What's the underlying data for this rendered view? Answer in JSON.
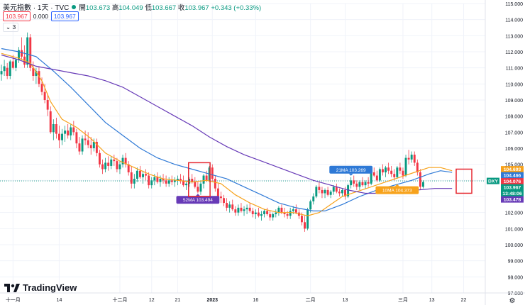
{
  "header": {
    "title": "美元指數 · 1天 · TVC",
    "open_label": "開",
    "open": "103.673",
    "high_label": "高",
    "high": "104.049",
    "low_label": "低",
    "low": "103.667",
    "close_label": "收",
    "close": "103.967",
    "change": "+0.343 (+0.33%)",
    "sell": "103.967",
    "spread": "0.000",
    "buy": "103.967",
    "indicators_count": "3"
  },
  "brand": "TradingView",
  "colors": {
    "up": "#089981",
    "down": "#f23645",
    "ma10": "#f7a21b",
    "ma21": "#2e79d6",
    "ma52": "#673ab7",
    "highlight": "#e5262f",
    "grid": "#f0f3fa",
    "axis_text": "#131722"
  },
  "chart_data": {
    "type": "candlestick",
    "symbol": "DXY",
    "ylim": [
      97,
      115
    ],
    "y_ticks": [
      "97.000",
      "98.000",
      "99.000",
      "100.000",
      "101.000",
      "102.000",
      "103.000",
      "104.000",
      "105.000",
      "106.000",
      "107.000",
      "108.000",
      "109.000",
      "110.000",
      "111.000",
      "112.000",
      "113.000",
      "114.000",
      "115.000"
    ],
    "x_ticks": [
      "十一月",
      "14",
      "十二月",
      "12",
      "21",
      "2023",
      "16",
      "二月",
      "13",
      "三月",
      "13",
      "22"
    ],
    "x_tick_index": [
      4,
      20,
      41,
      52,
      61,
      73,
      88,
      107,
      119,
      139,
      149,
      160
    ],
    "n_slots": 168,
    "candles": [
      [
        110.6,
        111.2,
        110.2,
        110.8
      ],
      [
        110.8,
        111.5,
        110.5,
        111.1
      ],
      [
        111.0,
        111.3,
        110.3,
        110.5
      ],
      [
        110.5,
        111.5,
        110.3,
        111.4
      ],
      [
        111.4,
        111.8,
        110.9,
        111.0
      ],
      [
        111.0,
        111.6,
        110.8,
        111.5
      ],
      [
        111.5,
        112.3,
        111.3,
        112.1
      ],
      [
        112.1,
        112.9,
        111.5,
        111.7
      ],
      [
        111.7,
        112.4,
        111.0,
        111.2
      ],
      [
        111.2,
        113.2,
        111.0,
        112.9
      ],
      [
        112.9,
        113.1,
        110.8,
        111.0
      ],
      [
        111.0,
        111.4,
        110.2,
        110.5
      ],
      [
        110.5,
        111.0,
        110.0,
        110.8
      ],
      [
        110.8,
        111.1,
        109.8,
        110.0
      ],
      [
        110.0,
        110.4,
        109.3,
        109.5
      ],
      [
        109.5,
        110.0,
        108.8,
        109.0
      ],
      [
        109.0,
        109.4,
        108.0,
        108.4
      ],
      [
        108.3,
        108.6,
        106.9,
        107.0
      ],
      [
        107.0,
        107.8,
        106.5,
        107.5
      ],
      [
        107.5,
        107.9,
        106.6,
        106.9
      ],
      [
        106.9,
        107.4,
        106.0,
        106.5
      ],
      [
        106.5,
        107.2,
        106.2,
        106.9
      ],
      [
        106.9,
        107.4,
        106.4,
        107.1
      ],
      [
        107.1,
        107.5,
        106.6,
        106.8
      ],
      [
        106.8,
        107.5,
        106.5,
        107.3
      ],
      [
        107.3,
        107.7,
        106.8,
        107.0
      ],
      [
        107.0,
        107.2,
        106.0,
        106.3
      ],
      [
        106.3,
        106.7,
        105.6,
        105.8
      ],
      [
        105.8,
        106.8,
        105.6,
        106.6
      ],
      [
        106.6,
        107.1,
        106.2,
        106.5
      ],
      [
        106.5,
        107.0,
        106.0,
        106.2
      ],
      [
        106.2,
        106.7,
        105.6,
        106.0
      ],
      [
        106.0,
        106.6,
        105.8,
        106.4
      ],
      [
        106.4,
        106.6,
        105.5,
        105.7
      ],
      [
        105.7,
        105.9,
        104.8,
        105.0
      ],
      [
        105.0,
        105.3,
        104.4,
        104.7
      ],
      [
        104.7,
        105.4,
        104.5,
        105.1
      ],
      [
        105.1,
        105.5,
        104.6,
        104.9
      ],
      [
        104.9,
        105.5,
        104.7,
        105.3
      ],
      [
        105.3,
        105.6,
        104.9,
        105.2
      ],
      [
        105.2,
        105.4,
        104.5,
        104.7
      ],
      [
        104.7,
        105.2,
        104.4,
        105.0
      ],
      [
        105.0,
        105.6,
        104.8,
        105.4
      ],
      [
        105.4,
        105.7,
        104.8,
        105.0
      ],
      [
        105.0,
        105.2,
        104.3,
        104.5
      ],
      [
        104.5,
        104.9,
        103.5,
        103.8
      ],
      [
        103.8,
        104.4,
        103.5,
        104.1
      ],
      [
        104.1,
        104.8,
        103.9,
        104.6
      ],
      [
        104.6,
        104.9,
        104.1,
        104.2
      ],
      [
        104.2,
        104.6,
        103.8,
        104.4
      ],
      [
        104.4,
        104.7,
        104.0,
        104.3
      ],
      [
        104.3,
        104.5,
        103.5,
        103.7
      ],
      [
        103.7,
        104.2,
        103.5,
        104.0
      ],
      [
        104.0,
        104.4,
        103.7,
        104.2
      ],
      [
        104.2,
        104.5,
        103.8,
        103.9
      ],
      [
        103.9,
        104.3,
        103.6,
        104.1
      ],
      [
        104.1,
        104.4,
        103.8,
        104.0
      ],
      [
        104.0,
        104.3,
        103.6,
        103.8
      ],
      [
        103.8,
        104.2,
        103.6,
        104.0
      ],
      [
        104.0,
        104.3,
        103.7,
        103.9
      ],
      [
        103.9,
        104.2,
        103.6,
        104.0
      ],
      [
        104.0,
        104.3,
        103.7,
        104.1
      ],
      [
        104.1,
        104.4,
        103.8,
        104.0
      ],
      [
        104.0,
        104.3,
        103.6,
        103.7
      ],
      [
        103.7,
        104.0,
        103.4,
        103.8
      ],
      [
        103.8,
        104.2,
        103.6,
        104.1
      ],
      [
        104.1,
        104.4,
        103.8,
        103.9
      ],
      [
        103.9,
        104.2,
        103.5,
        103.6
      ],
      [
        103.6,
        103.9,
        103.2,
        103.3
      ],
      [
        103.3,
        104.0,
        103.1,
        103.8
      ],
      [
        103.8,
        104.4,
        103.5,
        104.3
      ],
      [
        104.3,
        104.6,
        103.9,
        104.0
      ],
      [
        104.0,
        104.9,
        103.9,
        104.8
      ],
      [
        104.8,
        105.0,
        103.9,
        104.1
      ],
      [
        104.1,
        104.3,
        103.3,
        103.5
      ],
      [
        103.5,
        103.8,
        102.8,
        103.0
      ],
      [
        103.0,
        103.3,
        102.6,
        102.9
      ],
      [
        102.9,
        103.1,
        102.4,
        102.6
      ],
      [
        102.6,
        102.9,
        102.1,
        102.3
      ],
      [
        102.3,
        102.7,
        102.0,
        102.5
      ],
      [
        102.5,
        102.8,
        102.1,
        102.2
      ],
      [
        102.2,
        102.4,
        101.8,
        102.0
      ],
      [
        102.0,
        102.5,
        101.8,
        102.3
      ],
      [
        102.3,
        102.6,
        102.0,
        102.1
      ],
      [
        102.1,
        102.4,
        101.8,
        102.2
      ],
      [
        102.2,
        102.5,
        101.9,
        102.3
      ],
      [
        102.3,
        102.6,
        102.0,
        102.1
      ],
      [
        102.1,
        102.3,
        101.7,
        101.9
      ],
      [
        101.9,
        102.2,
        101.6,
        102.0
      ],
      [
        102.0,
        102.3,
        101.7,
        101.8
      ],
      [
        101.8,
        102.1,
        101.5,
        101.9
      ],
      [
        101.9,
        102.2,
        101.7,
        102.1
      ],
      [
        102.1,
        102.3,
        101.8,
        101.9
      ],
      [
        101.9,
        102.1,
        101.5,
        101.7
      ],
      [
        101.7,
        102.0,
        101.5,
        101.9
      ],
      [
        101.9,
        102.2,
        101.7,
        102.0
      ],
      [
        102.0,
        102.4,
        101.8,
        102.3
      ],
      [
        102.3,
        102.5,
        101.9,
        102.0
      ],
      [
        102.0,
        102.3,
        101.7,
        101.9
      ],
      [
        101.9,
        102.1,
        101.6,
        101.8
      ],
      [
        101.8,
        102.3,
        101.6,
        102.1
      ],
      [
        102.1,
        102.4,
        101.9,
        102.2
      ],
      [
        102.2,
        102.5,
        101.9,
        102.0
      ],
      [
        102.0,
        102.2,
        101.6,
        101.8
      ],
      [
        101.8,
        102.0,
        101.2,
        101.4
      ],
      [
        101.4,
        101.8,
        100.8,
        101.0
      ],
      [
        101.0,
        102.3,
        100.9,
        102.2
      ],
      [
        102.2,
        102.8,
        102.0,
        102.7
      ],
      [
        102.7,
        103.2,
        102.5,
        103.0
      ],
      [
        103.0,
        103.7,
        102.9,
        103.6
      ],
      [
        103.6,
        103.9,
        103.2,
        103.4
      ],
      [
        103.4,
        103.6,
        102.9,
        103.2
      ],
      [
        103.2,
        103.5,
        102.9,
        103.4
      ],
      [
        103.4,
        103.6,
        103.0,
        103.1
      ],
      [
        103.1,
        103.4,
        102.9,
        103.3
      ],
      [
        103.3,
        103.7,
        103.1,
        103.6
      ],
      [
        103.6,
        103.8,
        103.2,
        103.3
      ],
      [
        103.3,
        103.5,
        103.0,
        103.2
      ],
      [
        103.2,
        103.5,
        103.0,
        103.4
      ],
      [
        103.4,
        103.6,
        102.8,
        103.0
      ],
      [
        103.0,
        103.8,
        102.9,
        103.7
      ],
      [
        103.7,
        104.2,
        103.5,
        104.0
      ],
      [
        104.0,
        104.3,
        103.6,
        103.8
      ],
      [
        103.8,
        104.0,
        103.4,
        103.6
      ],
      [
        103.6,
        104.0,
        103.4,
        103.9
      ],
      [
        103.9,
        104.2,
        103.6,
        103.7
      ],
      [
        103.7,
        104.0,
        103.5,
        103.9
      ],
      [
        103.9,
        104.2,
        103.6,
        103.8
      ],
      [
        103.8,
        104.6,
        103.7,
        104.5
      ],
      [
        104.5,
        104.8,
        104.2,
        104.3
      ],
      [
        104.3,
        104.6,
        103.9,
        104.0
      ],
      [
        104.0,
        104.8,
        103.9,
        104.7
      ],
      [
        104.7,
        105.0,
        104.3,
        104.5
      ],
      [
        104.5,
        104.9,
        104.2,
        104.8
      ],
      [
        104.8,
        105.1,
        104.4,
        104.6
      ],
      [
        104.6,
        104.9,
        104.2,
        104.4
      ],
      [
        104.4,
        104.7,
        104.0,
        104.2
      ],
      [
        104.2,
        104.9,
        104.1,
        104.8
      ],
      [
        104.8,
        105.1,
        104.4,
        104.6
      ],
      [
        104.6,
        104.8,
        104.1,
        104.3
      ],
      [
        104.3,
        105.6,
        104.2,
        105.4
      ],
      [
        105.4,
        105.9,
        105.0,
        105.3
      ],
      [
        105.3,
        105.8,
        105.1,
        105.6
      ],
      [
        105.6,
        105.8,
        104.9,
        105.1
      ],
      [
        105.1,
        105.3,
        104.3,
        104.5
      ],
      [
        104.5,
        104.7,
        103.4,
        103.6
      ],
      [
        103.6,
        104.0,
        103.5,
        103.9
      ]
    ],
    "series": [
      {
        "name": "10MA",
        "label": "10MA 104.373",
        "values": [
          [
            0,
            111.9
          ],
          [
            6,
            111.6
          ],
          [
            10,
            111.3
          ],
          [
            14,
            110.2
          ],
          [
            17,
            108.9
          ],
          [
            21,
            107.8
          ],
          [
            26,
            107.3
          ],
          [
            31,
            106.6
          ],
          [
            36,
            105.7
          ],
          [
            41,
            105.2
          ],
          [
            46,
            104.8
          ],
          [
            51,
            104.4
          ],
          [
            56,
            104.1
          ],
          [
            61,
            104.0
          ],
          [
            66,
            103.9
          ],
          [
            71,
            104.0
          ],
          [
            76,
            103.8
          ],
          [
            81,
            103.1
          ],
          [
            86,
            102.6
          ],
          [
            91,
            102.2
          ],
          [
            96,
            102.0
          ],
          [
            101,
            102.0
          ],
          [
            106,
            101.8
          ],
          [
            110,
            102.0
          ],
          [
            114,
            102.5
          ],
          [
            118,
            103.0
          ],
          [
            123,
            103.3
          ],
          [
            128,
            103.6
          ],
          [
            133,
            103.9
          ],
          [
            138,
            104.2
          ],
          [
            143,
            104.5
          ],
          [
            148,
            104.8
          ],
          [
            152,
            104.8
          ],
          [
            156,
            104.6
          ]
        ]
      },
      {
        "name": "21MA",
        "label": "21MA 103.269",
        "values": [
          [
            0,
            112.2
          ],
          [
            6,
            112.0
          ],
          [
            12,
            111.7
          ],
          [
            18,
            110.8
          ],
          [
            24,
            109.8
          ],
          [
            30,
            108.7
          ],
          [
            36,
            107.6
          ],
          [
            42,
            106.8
          ],
          [
            48,
            106.0
          ],
          [
            54,
            105.4
          ],
          [
            60,
            105.0
          ],
          [
            66,
            104.7
          ],
          [
            72,
            104.4
          ],
          [
            78,
            104.1
          ],
          [
            84,
            103.6
          ],
          [
            90,
            103.1
          ],
          [
            96,
            102.6
          ],
          [
            102,
            102.3
          ],
          [
            108,
            102.1
          ],
          [
            112,
            102.1
          ],
          [
            118,
            102.5
          ],
          [
            124,
            103.0
          ],
          [
            130,
            103.4
          ],
          [
            136,
            103.7
          ],
          [
            142,
            104.0
          ],
          [
            148,
            104.4
          ],
          [
            152,
            104.6
          ],
          [
            156,
            104.5
          ]
        ]
      },
      {
        "name": "52MA",
        "label": "52MA 103.494",
        "values": [
          [
            0,
            111.8
          ],
          [
            6,
            111.5
          ],
          [
            12,
            111.1
          ],
          [
            18,
            110.9
          ],
          [
            24,
            110.7
          ],
          [
            30,
            110.5
          ],
          [
            36,
            110.2
          ],
          [
            42,
            109.8
          ],
          [
            48,
            109.2
          ],
          [
            54,
            108.6
          ],
          [
            60,
            108.0
          ],
          [
            66,
            107.4
          ],
          [
            72,
            106.7
          ],
          [
            78,
            106.1
          ],
          [
            84,
            105.6
          ],
          [
            90,
            105.2
          ],
          [
            96,
            104.8
          ],
          [
            102,
            104.4
          ],
          [
            108,
            104.0
          ],
          [
            114,
            103.7
          ],
          [
            120,
            103.4
          ],
          [
            126,
            103.2
          ],
          [
            132,
            103.2
          ],
          [
            138,
            103.3
          ],
          [
            144,
            103.4
          ],
          [
            150,
            103.5
          ],
          [
            156,
            103.5
          ]
        ]
      }
    ],
    "price_labels": [
      {
        "text": "104.693",
        "value": 104.693,
        "color": "#f7a21b"
      },
      {
        "text": "104.466",
        "value": 104.466,
        "color": "#2e79d6"
      },
      {
        "text": "104.076",
        "value": 104.076,
        "color": "#f23645"
      },
      {
        "text": "103.967",
        "value": 103.967,
        "color": "#089981"
      },
      {
        "text": "13:48:06",
        "value": 103.7,
        "color": "#089981"
      },
      {
        "text": "103.478",
        "value": 103.478,
        "color": "#673ab7"
      }
    ]
  }
}
